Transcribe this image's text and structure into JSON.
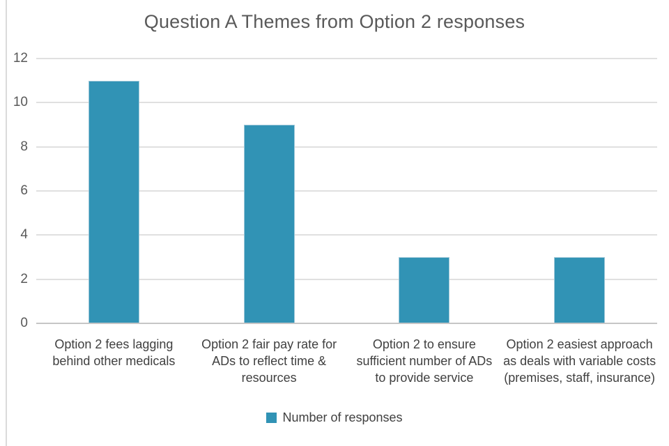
{
  "chart_data": {
    "type": "bar",
    "title": "Question A Themes from Option 2 responses",
    "series_name": "Number of responses",
    "categories": [
      "Option 2 fees lagging behind other medicals",
      "Option 2 fair pay rate for ADs to reflect time & resources",
      "Option 2 to ensure sufficient number of ADs to provide service",
      "Option 2 easiest approach as deals with variable costs (premises, staff, insurance)"
    ],
    "category_lines": [
      [
        "Option 2 fees lagging",
        "behind other medicals"
      ],
      [
        "Option 2 fair pay rate for",
        "ADs to reflect time &",
        "resources"
      ],
      [
        "Option 2 to ensure",
        "sufficient number of ADs",
        "to provide service"
      ],
      [
        "Option 2 easiest approach",
        "as deals with variable costs",
        "(premises, staff, insurance)"
      ]
    ],
    "values": [
      11,
      9,
      3,
      3
    ],
    "ylim": [
      0,
      12
    ],
    "ytick_step": 2,
    "ytick_labels": [
      "0",
      "2",
      "4",
      "6",
      "8",
      "10",
      "12"
    ],
    "grid": true,
    "legend_position": "bottom",
    "colors": {
      "bar": "#3193B5",
      "bar_edge": "#9DC7D8",
      "gridline": "#E0E0E0",
      "axis_line": "#C6C6C6",
      "frame_line": "#DBDBDB",
      "title_text": "#595959",
      "tick_text": "#595959",
      "category_text": "#404040",
      "legend_text": "#404040"
    }
  }
}
